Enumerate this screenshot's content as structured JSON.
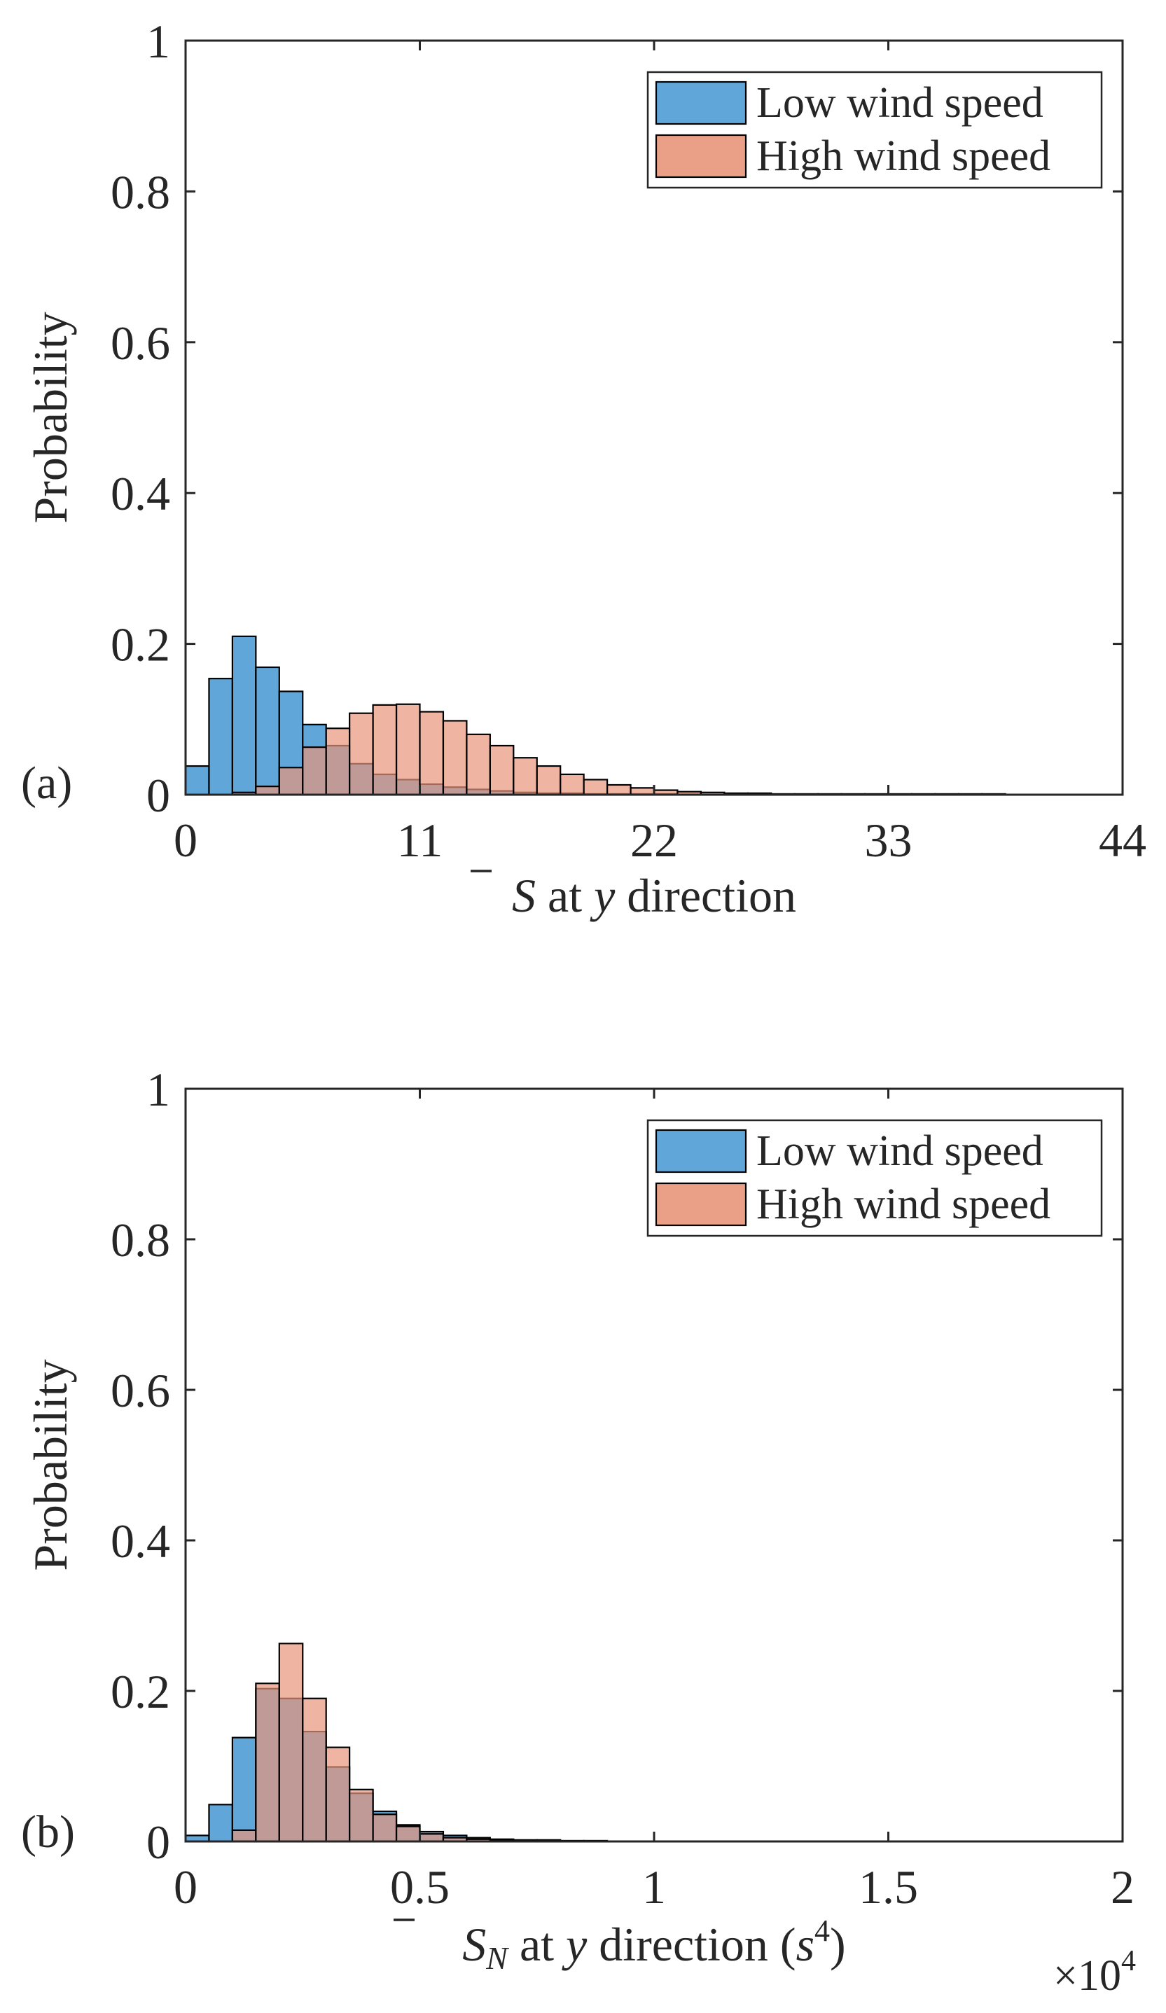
{
  "chart_data": [
    {
      "type": "bar",
      "panel_label": "(a)",
      "title": "",
      "xlabel": {
        "symbol": "S",
        "subscript": "",
        "mid": " at ",
        "var": "y",
        "tail": " direction",
        "suffix": ""
      },
      "ylabel": "Probability",
      "xlim": [
        0,
        44
      ],
      "ylim": [
        0,
        1
      ],
      "xticks": [
        "0",
        "11",
        "22",
        "33",
        "44"
      ],
      "xtick_values": [
        0,
        11,
        22,
        33,
        44
      ],
      "yticks": [
        "0",
        "0.2",
        "0.4",
        "0.6",
        "0.8",
        "1"
      ],
      "ytick_values": [
        0,
        0.2,
        0.4,
        0.6,
        0.8,
        1
      ],
      "exponent_label": "",
      "bin_start": 0,
      "bin_width": 1.1,
      "legend": {
        "position": "top-right"
      },
      "series": [
        {
          "name": "Low wind speed",
          "color": "#61a6d9",
          "values": [
            0.038,
            0.154,
            0.21,
            0.169,
            0.137,
            0.093,
            0.065,
            0.041,
            0.027,
            0.02,
            0.014,
            0.01,
            0.007,
            0.005,
            0.003,
            0.002,
            0.002,
            0.001,
            0.001,
            0.001,
            0.001,
            0,
            0,
            0,
            0,
            0,
            0,
            0,
            0,
            0,
            0,
            0,
            0,
            0,
            0,
            0,
            0,
            0,
            0,
            0
          ]
        },
        {
          "name": "High wind speed",
          "color": "#e8967a",
          "values": [
            0,
            0,
            0.003,
            0.011,
            0.036,
            0.063,
            0.088,
            0.108,
            0.119,
            0.12,
            0.11,
            0.098,
            0.08,
            0.065,
            0.049,
            0.038,
            0.027,
            0.02,
            0.013,
            0.009,
            0.006,
            0.004,
            0.003,
            0.002,
            0.002,
            0.001,
            0.001,
            0.001,
            0.001,
            0.001,
            0.001,
            0.001,
            0.001,
            0.001,
            0.001,
            0,
            0,
            0,
            0,
            0
          ]
        }
      ]
    },
    {
      "type": "bar",
      "panel_label": "(b)",
      "title": "",
      "xlabel": {
        "symbol": "S",
        "subscript": "N",
        "mid": " at ",
        "var": "y",
        "tail": " direction (",
        "suffix": ")",
        "power_base": "s",
        "power_exp": "4"
      },
      "ylabel": "Probability",
      "xlim": [
        0,
        2
      ],
      "ylim": [
        0,
        1
      ],
      "xticks": [
        "0",
        "0.5",
        "1",
        "1.5",
        "2"
      ],
      "xtick_values": [
        0,
        0.5,
        1,
        1.5,
        2
      ],
      "yticks": [
        "0",
        "0.2",
        "0.4",
        "0.6",
        "0.8",
        "1"
      ],
      "ytick_values": [
        0,
        0.2,
        0.4,
        0.6,
        0.8,
        1
      ],
      "exponent_label": {
        "prefix": "×10",
        "exp": "4"
      },
      "bin_start": 0,
      "bin_width": 0.05,
      "legend": {
        "position": "top-right"
      },
      "series": [
        {
          "name": "Low wind speed",
          "color": "#61a6d9",
          "values": [
            0.008,
            0.049,
            0.138,
            0.203,
            0.19,
            0.146,
            0.099,
            0.064,
            0.04,
            0.022,
            0.013,
            0.008,
            0.005,
            0.003,
            0.002,
            0.002,
            0.001,
            0.001,
            0,
            0,
            0,
            0,
            0,
            0,
            0,
            0,
            0,
            0,
            0,
            0,
            0,
            0,
            0,
            0,
            0,
            0,
            0,
            0,
            0,
            0
          ]
        },
        {
          "name": "High wind speed",
          "color": "#e8967a",
          "values": [
            0,
            0,
            0.015,
            0.21,
            0.263,
            0.19,
            0.125,
            0.069,
            0.036,
            0.02,
            0.01,
            0.005,
            0.003,
            0.002,
            0.001,
            0.001,
            0,
            0,
            0,
            0,
            0,
            0,
            0,
            0,
            0,
            0,
            0,
            0,
            0,
            0,
            0,
            0,
            0,
            0,
            0,
            0,
            0,
            0,
            0,
            0
          ]
        }
      ]
    }
  ]
}
